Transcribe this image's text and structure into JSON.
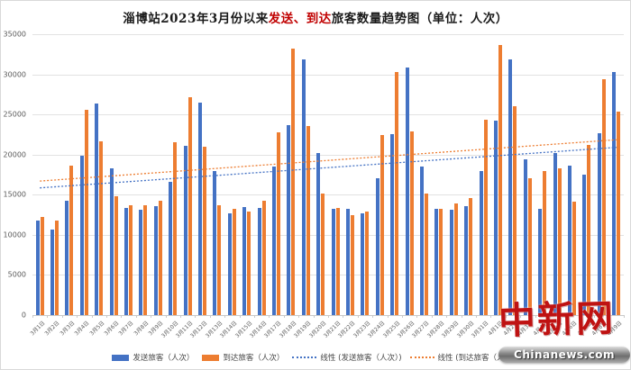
{
  "title": {
    "prefix": "淄博站2023年3月份以来",
    "highlight": "发送、到达",
    "suffix": "旅客数量趋势图（单位：人次）"
  },
  "watermark": {
    "logo": "中新网",
    "site": "Chinanews.com"
  },
  "colors": {
    "send": "#4472C4",
    "arrive": "#ED7D31",
    "grid": "#e2e2e2",
    "title_highlight": "#c00000",
    "watermark_red": "#bf1212"
  },
  "chart_data": {
    "type": "bar",
    "title": "淄博站2023年3月份以来发送、到达旅客数量趋势图（单位：人次）",
    "xlabel": "",
    "ylabel": "",
    "ylim": [
      0,
      35000
    ],
    "yticks": [
      0,
      5000,
      10000,
      15000,
      20000,
      25000,
      30000,
      35000
    ],
    "grid": true,
    "legend_position": "bottom",
    "categories": [
      "3月1日",
      "3月2日",
      "3月3日",
      "3月4日",
      "3月5日",
      "3月6日",
      "3月7日",
      "3月8日",
      "3月9日",
      "3月10日",
      "3月11日",
      "3月12日",
      "3月13日",
      "3月14日",
      "3月15日",
      "3月16日",
      "3月17日",
      "3月18日",
      "3月19日",
      "3月20日",
      "3月21日",
      "3月22日",
      "3月23日",
      "3月24日",
      "3月25日",
      "3月26日",
      "3月27日",
      "3月28日",
      "3月29日",
      "3月30日",
      "3月31日",
      "4月1日",
      "4月2日",
      "4月3日",
      "4月4日",
      "4月5日",
      "4月6日",
      "4月7日",
      "4月8日",
      "4月9日"
    ],
    "series": [
      {
        "name": "发送旅客（人次）",
        "color": "#4472C4",
        "values": [
          11800,
          10700,
          14300,
          19900,
          26400,
          18300,
          13400,
          13100,
          13600,
          16600,
          21100,
          26500,
          17900,
          12700,
          13500,
          13400,
          18500,
          23700,
          31900,
          20200,
          13200,
          13200,
          12700,
          17100,
          22500,
          30900,
          18500,
          13200,
          13100,
          13600,
          17900,
          24200,
          31900,
          19400,
          13200,
          20200,
          18600,
          17500,
          22700,
          30300
        ]
      },
      {
        "name": "到达旅客（人次）",
        "color": "#ED7D31",
        "values": [
          12200,
          11800,
          18600,
          25600,
          21600,
          14800,
          13700,
          13700,
          14300,
          21500,
          27200,
          21000,
          13700,
          13200,
          12900,
          14300,
          22800,
          33200,
          23600,
          15100,
          13400,
          12500,
          12900,
          22400,
          30300,
          22900,
          15100,
          13200,
          13900,
          14600,
          24300,
          33700,
          26000,
          17100,
          18000,
          18300,
          14100,
          21200,
          29400,
          25300
        ]
      }
    ],
    "trendlines": [
      {
        "name": "线性 (发送旅客（人次）)",
        "color": "#4472C4",
        "start": 15850,
        "end": 20900
      },
      {
        "name": "线性 (到达旅客（人次）)",
        "color": "#ED7D31",
        "start": 16700,
        "end": 21850
      }
    ]
  }
}
